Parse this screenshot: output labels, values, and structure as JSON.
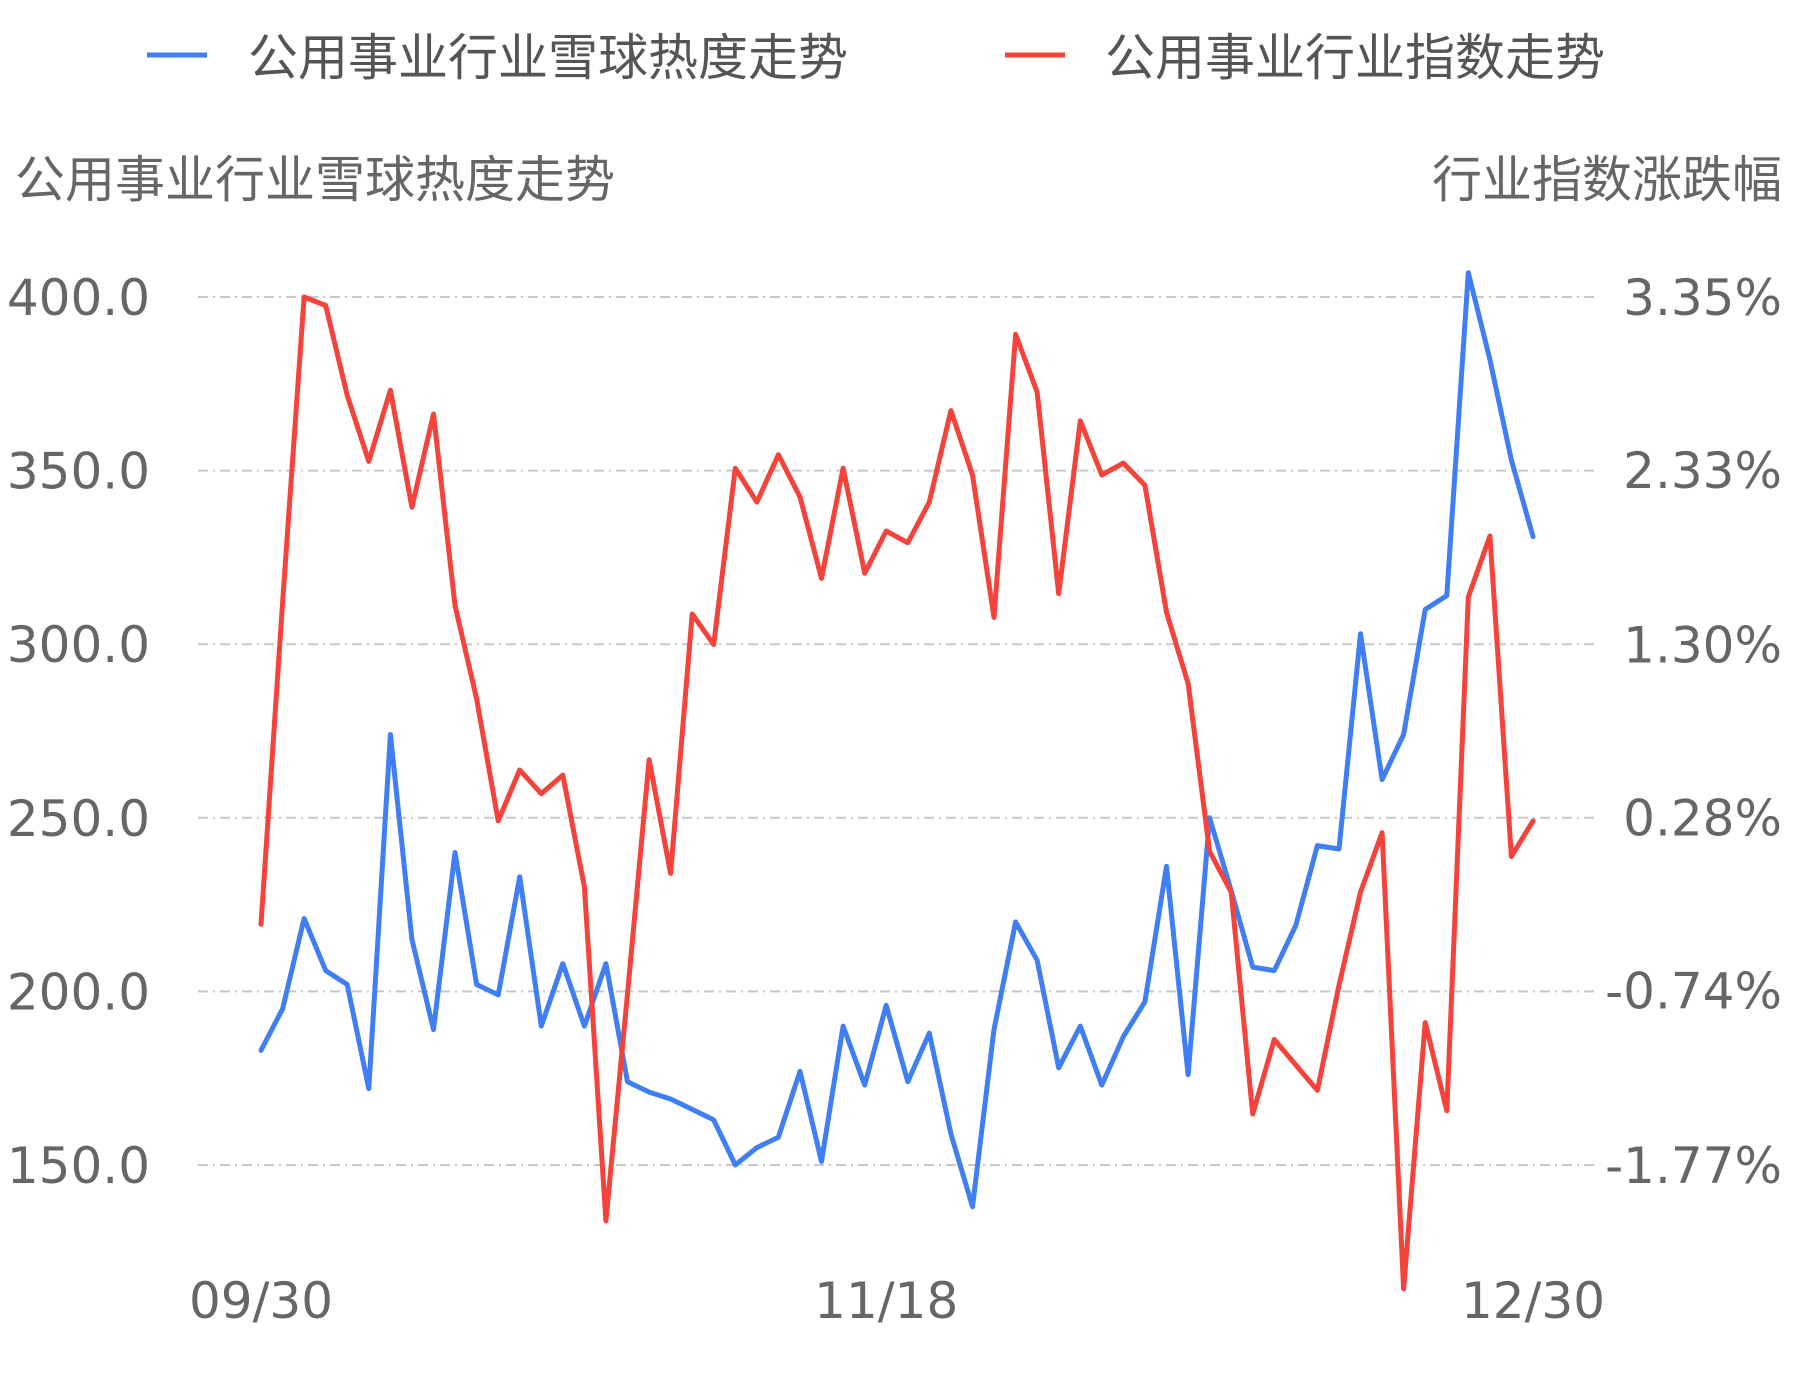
{
  "chart_data": {
    "type": "line",
    "legend_position": "top",
    "grid": true,
    "y_left_title": "公用事业行业雪球热度走势",
    "y_right_title": "行业指数涨跌幅",
    "x_tick_labels": [
      "09/30",
      "11/18",
      "12/30"
    ],
    "x_tick_indices": [
      0,
      29,
      59
    ],
    "y_left_ticks": [
      "400.0",
      "350.0",
      "300.0",
      "250.0",
      "200.0",
      "150.0"
    ],
    "y_left_tick_values": [
      400,
      350,
      300,
      250,
      200,
      150
    ],
    "y_left_range": [
      150,
      400
    ],
    "y_right_ticks": [
      "3.35%",
      "2.33%",
      "1.30%",
      "0.28%",
      "-0.74%",
      "-1.77%"
    ],
    "y_right_tick_values": [
      3.35,
      2.33,
      1.3,
      0.28,
      -0.74,
      -1.77
    ],
    "y_right_range": [
      -1.77,
      3.35
    ],
    "series": [
      {
        "name": "公用事业行业雪球热度走势",
        "axis": "left",
        "color": "#3f7ef5",
        "values": [
          183,
          195,
          221,
          206,
          202,
          172,
          274,
          215,
          189,
          240,
          202,
          199,
          233,
          190,
          208,
          190,
          208,
          174,
          171,
          169,
          166,
          163,
          150,
          155,
          158,
          177,
          151,
          190,
          173,
          196,
          174,
          188,
          159,
          138,
          189,
          220,
          209,
          178,
          190,
          173,
          187,
          197,
          236,
          176,
          250,
          229,
          207,
          206,
          219,
          242,
          241,
          303,
          261,
          274,
          310,
          314,
          407,
          382,
          353,
          331
        ]
      },
      {
        "name": "公用事业行业指数走势",
        "axis": "right",
        "color": "#f5423b",
        "values": [
          -0.35,
          1.55,
          3.35,
          3.3,
          2.77,
          2.38,
          2.8,
          2.11,
          2.66,
          1.53,
          0.98,
          0.26,
          0.56,
          0.42,
          0.53,
          -0.13,
          -2.1,
          -0.76,
          0.62,
          -0.05,
          1.48,
          1.3,
          2.34,
          2.14,
          2.42,
          2.17,
          1.69,
          2.34,
          1.72,
          1.97,
          1.9,
          2.14,
          2.68,
          2.3,
          1.46,
          3.13,
          2.79,
          1.6,
          2.62,
          2.3,
          2.37,
          2.24,
          1.49,
          1.07,
          0.08,
          -0.16,
          -1.47,
          -1.03,
          -1.18,
          -1.33,
          -0.71,
          -0.16,
          0.19,
          -2.5,
          -0.93,
          -1.45,
          1.58,
          1.94,
          0.05,
          0.26
        ]
      }
    ]
  }
}
